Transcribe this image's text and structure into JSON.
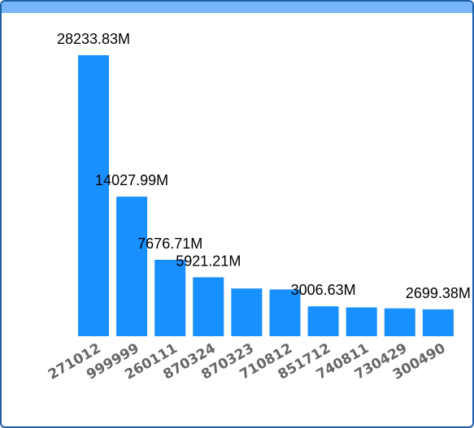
{
  "chart_data": {
    "type": "bar",
    "title": "",
    "xlabel": "",
    "ylabel": "",
    "categories": [
      "271012",
      "999999",
      "260111",
      "870324",
      "870323",
      "710812",
      "851712",
      "740811",
      "730429",
      "300490"
    ],
    "values": [
      28233.83,
      14027.99,
      7676.71,
      5921.21,
      4800,
      4700,
      3006.63,
      2900,
      2800,
      2699.38
    ],
    "data_labels": [
      "28233.83M",
      "14027.99M",
      "7676.71M",
      "5921.21M",
      "",
      "",
      "3006.63M",
      "",
      "",
      "2699.38M"
    ],
    "ylim": [
      0,
      28233.83
    ],
    "grid": false,
    "legend": "none",
    "bar_color": "#1890ff",
    "header_color": "#76b5f7",
    "border_color": "#1f5fa8"
  }
}
